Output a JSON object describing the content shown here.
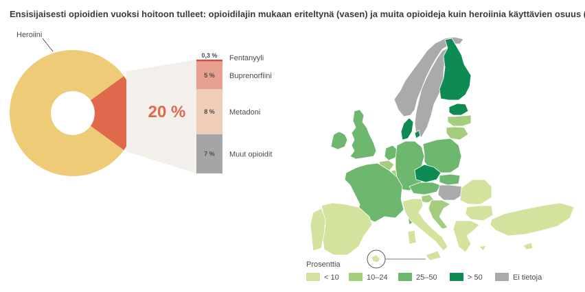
{
  "title": "Ensisijaisesti opioidien vuoksi hoitoon tulleet: opioidilajin mukaan eriteltynä (vasen) ja muita opioideja kuin heroiinia käyttävien osuus (oikea)",
  "chart_data": [
    {
      "type": "pie",
      "variant": "donut",
      "slices": [
        {
          "label": "Heroiini",
          "value": 80,
          "color": "#eecb77"
        },
        {
          "label": "",
          "value": 20,
          "color": "#e0694d"
        }
      ],
      "center_percent_label": "20 %",
      "breakdown": [
        {
          "label": "Fentanyyli",
          "value": 0.3,
          "value_label": "0,3 %",
          "color": "#d9493b"
        },
        {
          "label": "Buprenorfiini",
          "value": 5,
          "value_label": "5 %",
          "color": "#e7a090"
        },
        {
          "label": "Metadoni",
          "value": 8,
          "value_label": "8 %",
          "color": "#efcdb8"
        },
        {
          "label": "Muut opioidit",
          "value": 7,
          "value_label": "7 %",
          "color": "#a4a5a7"
        }
      ]
    },
    {
      "type": "map",
      "legend_title": "Prosenttia",
      "legend": [
        {
          "label": "< 10",
          "color": "#d3e39d"
        },
        {
          "label": "10–24",
          "color": "#a4cd7e"
        },
        {
          "label": "25–50",
          "color": "#6db86e"
        },
        {
          "label": "> 50",
          "color": "#0e8b53"
        },
        {
          "label": "Ei tietoja",
          "color": "#a9aaac"
        }
      ],
      "regions": [
        {
          "name": "Finland",
          "category": "> 50"
        },
        {
          "name": "Estonia",
          "category": "> 50"
        },
        {
          "name": "Denmark",
          "category": "> 50"
        },
        {
          "name": "Czechia",
          "category": "> 50"
        },
        {
          "name": "Norway",
          "category": "Ei tietoja"
        },
        {
          "name": "Sweden",
          "category": "Ei tietoja"
        },
        {
          "name": "Hungary",
          "category": "Ei tietoja"
        },
        {
          "name": "Germany",
          "category": "25–50"
        },
        {
          "name": "France",
          "category": "25–50"
        },
        {
          "name": "Poland",
          "category": "25–50"
        },
        {
          "name": "Ireland",
          "category": "25–50"
        },
        {
          "name": "United Kingdom",
          "category": "25–50"
        },
        {
          "name": "Netherlands",
          "category": "25–50"
        },
        {
          "name": "Austria",
          "category": "25–50"
        },
        {
          "name": "Slovakia",
          "category": "25–50"
        },
        {
          "name": "Latvia",
          "category": "10–24"
        },
        {
          "name": "Lithuania",
          "category": "10–24"
        },
        {
          "name": "Belgium",
          "category": "10–24"
        },
        {
          "name": "Luxembourg",
          "category": "10–24"
        },
        {
          "name": "Slovenia",
          "category": "10–24"
        },
        {
          "name": "Croatia",
          "category": "10–24"
        },
        {
          "name": "Spain",
          "category": "< 10"
        },
        {
          "name": "Portugal",
          "category": "< 10"
        },
        {
          "name": "Italy",
          "category": "< 10"
        },
        {
          "name": "Romania",
          "category": "< 10"
        },
        {
          "name": "Bulgaria",
          "category": "< 10"
        },
        {
          "name": "Greece",
          "category": "< 10"
        },
        {
          "name": "Türkiye",
          "category": "< 10"
        },
        {
          "name": "Cyprus",
          "category": "< 10"
        },
        {
          "name": "Malta",
          "category": "< 10"
        }
      ]
    }
  ]
}
